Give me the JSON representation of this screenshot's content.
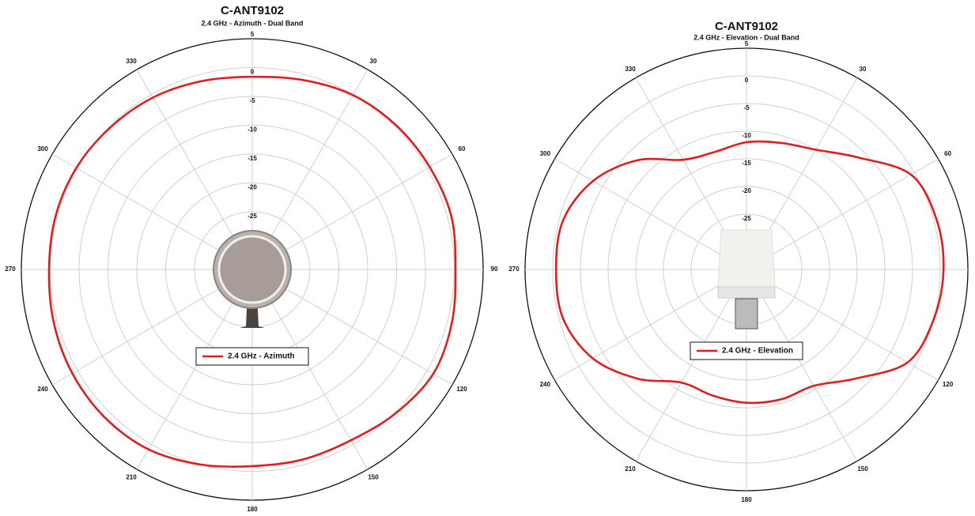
{
  "chart_data": [
    {
      "type": "polar",
      "title": "C-ANT9102",
      "subtitle": "2.4 GHz - Azimuth - Dual Band",
      "rlim": [
        -35,
        5
      ],
      "rticks": [
        -25,
        -20,
        -15,
        -10,
        -5,
        0,
        5
      ],
      "thetaticks": [
        30,
        60,
        90,
        120,
        150,
        180,
        210,
        240,
        270,
        300,
        330
      ],
      "theta": [
        0,
        15,
        30,
        45,
        60,
        75,
        90,
        105,
        120,
        135,
        150,
        165,
        180,
        195,
        210,
        225,
        240,
        255,
        270,
        285,
        300,
        315,
        330,
        345
      ],
      "series": [
        {
          "name": "2.4 GHz - Azimuth",
          "color": "#dd1f1f",
          "values": [
            -1.6,
            -1,
            -0.1,
            0.3,
            0.5,
            0.7,
            0.2,
            0.8,
            1.2,
            0.2,
            -0.8,
            -0.9,
            -0.9,
            0,
            1,
            1.2,
            1,
            0.6,
            0.2,
            0.3,
            0.2,
            -0.2,
            -0.6,
            -1.2
          ]
        }
      ]
    },
    {
      "type": "polar",
      "title": "C-ANT9102",
      "subtitle": "2.4 GHz - Elevation - Dual Band",
      "rlim": [
        -35,
        5
      ],
      "rticks": [
        -25,
        -20,
        -15,
        -10,
        -5,
        0,
        5
      ],
      "thetaticks": [
        30,
        60,
        90,
        120,
        150,
        180,
        210,
        240,
        270,
        300,
        330
      ],
      "theta": [
        0,
        15,
        30,
        45,
        60,
        75,
        90,
        105,
        120,
        135,
        150,
        165,
        180,
        195,
        210,
        225,
        240,
        255,
        270,
        285,
        300,
        315,
        330,
        345
      ],
      "series": [
        {
          "name": "2.4 GHz - Elevation",
          "color": "#dd1f1f",
          "values": [
            -12,
            -11.3,
            -10,
            -6.4,
            -0.7,
            0.5,
            0.6,
            0,
            -1.4,
            -7.1,
            -10.7,
            -10.7,
            -10.9,
            -11.4,
            -11.4,
            -7.1,
            -2.9,
            -0.7,
            -0.6,
            -0.7,
            -3,
            -7.1,
            -12.1,
            -13
          ]
        }
      ]
    }
  ]
}
